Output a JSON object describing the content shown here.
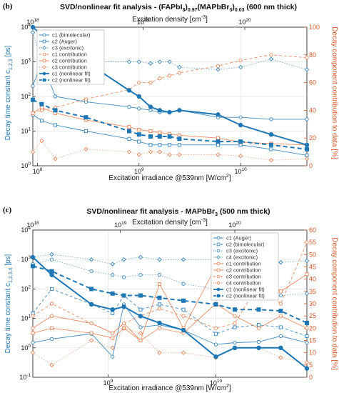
{
  "colors": {
    "blue": "#1f77b4",
    "orange": "#e8794a",
    "gray": "#999999"
  },
  "panels": [
    {
      "panel_label": "(b)",
      "title_main": "SVD/nonlinear fit analysis - (FAPbI",
      "title_sub1": "3",
      "title_mid1": ")",
      "title_sub2": "0.97",
      "title_mid2": "(MAPbBr",
      "title_sub3": "3",
      "title_mid3": ")",
      "title_sub4": "0.03",
      "title_end": " (600 nm thick)",
      "top_label": "Excitation density [cm",
      "top_label_sup": "-3",
      "top_label_end": "]",
      "xlabel": "Excitation irradiance @539nm [W/cm",
      "xlabel_sup": "2",
      "xlabel_end": "]",
      "ylabel": "Decay time constant c",
      "ylabel_sub": "1,2,3",
      "ylabel_end": " [ps]",
      "y2label": "Decay component contribution to data [%]"
    },
    {
      "panel_label": "(c)",
      "title_main": "SVD/nonlinear fit analysis - MAPbBr",
      "title_sub1": "3",
      "title_end": " (500 nm thick)",
      "top_label": "Excitation density [cm",
      "top_label_sup": "-3",
      "top_label_end": "]",
      "xlabel": "Excitation irradiance @539nm [W/cm",
      "xlabel_sup": "2",
      "xlabel_end": "]",
      "ylabel": "Decay time constant c",
      "ylabel_sub": "1,2,3,4",
      "ylabel_end": " [ps]",
      "y2label": "Decay component contribution to data [%]"
    }
  ],
  "chart_data": [
    {
      "type": "line",
      "title": "SVD/nonlinear fit analysis - (FAPbI3)0.97(MAPbBr3)0.03 (600 nm thick)",
      "xlabel": "Excitation irradiance @539nm [W/cm2]",
      "ylabel": "Decay time constant c1,2,3 [ps]",
      "y2label": "Decay component contribution to data [%]",
      "top_xlabel": "Excitation density [cm-3]",
      "xscale": "log",
      "yscale": "log",
      "xlim": [
        90000000.0,
        45000000000.0
      ],
      "ylim": [
        1,
        10000
      ],
      "y2lim": [
        0,
        100
      ],
      "x_ticks": [
        "10^8",
        "10^9",
        "10^10"
      ],
      "y_ticks": [
        "10^0",
        "10^1",
        "10^2",
        "10^3",
        "10^4"
      ],
      "y2_ticks": [
        "0",
        "20",
        "40",
        "60",
        "80",
        "100"
      ],
      "top_ticks": [
        "10^18",
        "10^19",
        "10^20"
      ],
      "top_tick_x": [
        90000000.0,
        1100000000.0,
        11000000000.0
      ],
      "legend": "top-left",
      "series": [
        {
          "name": "c1 (bimolecular)",
          "axis": "left",
          "marker": "circle-open",
          "dash": "solid",
          "color": "blue",
          "x": [
            90000000.0,
            110000000.0,
            150000000.0,
            300000000.0,
            800000000.0,
            1000000000.0,
            1300000000.0,
            1600000000.0,
            2000000000.0,
            2500000000.0,
            6000000000.0,
            10000000000.0,
            20000000000.0,
            45000000000.0
          ],
          "y": [
            200,
            1000,
            100,
            70,
            50,
            45,
            40,
            35,
            35,
            40,
            25,
            25,
            22,
            22
          ]
        },
        {
          "name": "c2 (Auger)",
          "axis": "left",
          "marker": "square-open",
          "dash": "solid",
          "color": "blue",
          "x": [
            90000000.0,
            110000000.0,
            150000000.0,
            300000000.0,
            800000000.0,
            1000000000.0,
            1300000000.0,
            1600000000.0,
            2000000000.0,
            2500000000.0,
            6000000000.0,
            10000000000.0,
            20000000000.0,
            45000000000.0
          ],
          "y": [
            30,
            20,
            15,
            10,
            6,
            5,
            4,
            4,
            4,
            4,
            4,
            4,
            3,
            2
          ]
        },
        {
          "name": "c3 (excitonic)",
          "axis": "left",
          "marker": "diamond-open",
          "dash": "dotted",
          "color": "blue",
          "x": [
            90000000.0,
            110000000.0,
            150000000.0,
            300000000.0,
            800000000.0,
            1000000000.0,
            1300000000.0,
            1600000000.0,
            2000000000.0,
            2500000000.0,
            6000000000.0,
            10000000000.0,
            20000000000.0,
            45000000000.0
          ],
          "y": [
            7000,
            1000,
            800,
            1000,
            1000,
            1000,
            900,
            1000,
            1000,
            700,
            600,
            700,
            1200,
            600
          ]
        },
        {
          "name": "c1 contribution",
          "axis": "right",
          "marker": "circle-open",
          "dash": "dashed",
          "color": "orange",
          "x": [
            90000000.0,
            110000000.0,
            150000000.0,
            300000000.0,
            800000000.0,
            1000000000.0,
            1300000000.0,
            1600000000.0,
            2000000000.0,
            2500000000.0,
            6000000000.0,
            10000000000.0,
            20000000000.0,
            45000000000.0
          ],
          "y": [
            38,
            40,
            42,
            48,
            55,
            60,
            60,
            63,
            65,
            67,
            72,
            76,
            80,
            78
          ]
        },
        {
          "name": "c2 contribution",
          "axis": "right",
          "marker": "square-open",
          "dash": "solid",
          "color": "orange",
          "x": [
            90000000.0,
            110000000.0,
            150000000.0,
            300000000.0,
            800000000.0,
            1000000000.0,
            1300000000.0,
            1600000000.0,
            2000000000.0,
            2500000000.0,
            6000000000.0,
            10000000000.0,
            20000000000.0,
            45000000000.0
          ],
          "y": [
            38,
            42,
            38,
            33,
            28,
            26,
            25,
            24,
            23,
            22,
            20,
            17,
            16,
            15
          ]
        },
        {
          "name": "c3 contribution",
          "axis": "right",
          "marker": "diamond-open",
          "dash": "dotted",
          "color": "orange",
          "x": [
            90000000.0,
            110000000.0,
            150000000.0,
            300000000.0,
            800000000.0,
            1000000000.0,
            1300000000.0,
            1600000000.0,
            2000000000.0,
            2500000000.0,
            6000000000.0,
            10000000000.0,
            20000000000.0,
            45000000000.0
          ],
          "y": [
            10,
            18,
            5,
            12,
            10,
            8,
            10,
            10,
            8,
            8,
            8,
            7,
            4,
            5
          ]
        },
        {
          "name": "c1 (nonlinear fit)",
          "axis": "left",
          "marker": "circle-filled",
          "dash": "solid-thick",
          "color": "blue",
          "x": [
            90000000.0,
            110000000.0,
            150000000.0,
            300000000.0,
            800000000.0,
            1000000000.0,
            1300000000.0,
            1600000000.0,
            2000000000.0,
            2500000000.0,
            6000000000.0,
            10000000000.0,
            20000000000.0,
            45000000000.0
          ],
          "y": [
            10000,
            6000,
            4000,
            1000,
            150,
            100,
            50,
            40,
            35,
            40,
            30,
            15,
            8,
            4
          ]
        },
        {
          "name": "c2 (nonlinear fit)",
          "axis": "left",
          "marker": "square-filled",
          "dash": "dashed-thick",
          "color": "blue",
          "x": [
            90000000.0,
            110000000.0,
            150000000.0,
            300000000.0,
            800000000.0,
            1000000000.0,
            1300000000.0,
            1600000000.0,
            2000000000.0,
            2500000000.0,
            6000000000.0,
            10000000000.0,
            20000000000.0,
            45000000000.0
          ],
          "y": [
            80,
            60,
            40,
            25,
            10,
            8,
            7,
            7,
            7,
            6,
            5,
            5,
            4,
            3
          ]
        }
      ]
    },
    {
      "type": "line",
      "title": "SVD/nonlinear fit analysis - MAPbBr3 (500 nm thick)",
      "xlabel": "Excitation irradiance @539nm [W/cm2]",
      "ylabel": "Decay time constant c1,2,3,4 [ps]",
      "y2label": "Decay component contribution to data [%]",
      "top_xlabel": "Excitation density [cm-3]",
      "xscale": "log",
      "yscale": "log",
      "xlim": [
        200000000.0,
        70000000000.0
      ],
      "ylim": [
        0.1,
        10000
      ],
      "y2lim": [
        0,
        60
      ],
      "x_ticks": [
        "10^9",
        "10^10"
      ],
      "y_ticks": [
        "10^-1",
        "10^0",
        "10^1",
        "10^2",
        "10^3",
        "10^4"
      ],
      "y2_ticks": [
        "0",
        "5",
        "10",
        "15",
        "20",
        "25",
        "30",
        "35",
        "40",
        "45",
        "50",
        "55",
        "60"
      ],
      "top_ticks": [
        "10^18",
        "10^19",
        "10^20"
      ],
      "top_tick_x": [
        200000000.0,
        1300000000.0,
        15000000000.0
      ],
      "legend": "top-right",
      "series": [
        {
          "name": "c1 (Auger)",
          "axis": "left",
          "marker": "circle-open",
          "dash": "solid",
          "color": "blue",
          "x": [
            200000000.0,
            300000000.0,
            700000000.0,
            1100000000.0,
            1400000000.0,
            2000000000.0,
            3000000000.0,
            5000000000.0,
            10000000000.0,
            15000000000.0,
            25000000000.0,
            40000000000.0,
            70000000000.0
          ],
          "y": [
            1.5,
            2,
            3,
            0.5,
            30,
            5,
            6,
            4,
            1.3,
            1.5,
            1.6,
            2.5,
            1.5
          ]
        },
        {
          "name": "c2 (bimolecular)",
          "axis": "left",
          "marker": "square-open",
          "dash": "dashed",
          "color": "blue",
          "x": [
            200000000.0,
            300000000.0,
            700000000.0,
            1100000000.0,
            1400000000.0,
            2000000000.0,
            3000000000.0,
            5000000000.0,
            10000000000.0,
            15000000000.0,
            25000000000.0,
            40000000000.0,
            70000000000.0
          ],
          "y": [
            15,
            100,
            30,
            15,
            60,
            20,
            30,
            20,
            3,
            5,
            6,
            5,
            2.5
          ]
        },
        {
          "name": "c3 (excitonic)",
          "axis": "left",
          "marker": "circle-open",
          "dash": "dotted",
          "color": "blue",
          "x": [
            200000000.0,
            300000000.0,
            700000000.0,
            1100000000.0,
            1400000000.0,
            2000000000.0,
            3000000000.0,
            5000000000.0,
            10000000000.0,
            15000000000.0,
            25000000000.0,
            40000000000.0,
            70000000000.0
          ],
          "y": [
            700,
            1000,
            400,
            300,
            250,
            300,
            300,
            150,
            100,
            100,
            80,
            60,
            70
          ]
        },
        {
          "name": "c4 (excitonic)",
          "axis": "left",
          "marker": "diamond-open",
          "dash": "dotted",
          "color": "blue",
          "x": [
            200000000.0,
            300000000.0,
            700000000.0,
            1100000000.0,
            1400000000.0,
            2000000000.0,
            3000000000.0,
            5000000000.0,
            10000000000.0,
            15000000000.0,
            25000000000.0,
            40000000000.0,
            70000000000.0
          ],
          "y": [
            1200,
            1500,
            1000,
            700,
            1000,
            1200,
            1000,
            1000,
            1000,
            1000,
            1000,
            800,
            900
          ]
        },
        {
          "name": "c1 contribution",
          "axis": "right",
          "marker": "circle-open",
          "dash": "solid",
          "color": "orange",
          "x": [
            200000000.0,
            300000000.0,
            700000000.0,
            1100000000.0,
            1400000000.0,
            2000000000.0,
            3000000000.0,
            5000000000.0,
            10000000000.0,
            15000000000.0,
            25000000000.0,
            40000000000.0,
            70000000000.0
          ],
          "y": [
            20,
            25,
            22,
            18,
            22,
            15,
            20,
            18,
            30,
            25,
            20,
            25,
            20
          ]
        },
        {
          "name": "c2 contribution",
          "axis": "right",
          "marker": "square-open",
          "dash": "solid",
          "color": "orange",
          "x": [
            200000000.0,
            300000000.0,
            700000000.0,
            1100000000.0,
            1400000000.0,
            2000000000.0,
            3000000000.0,
            5000000000.0,
            10000000000.0,
            15000000000.0,
            25000000000.0,
            40000000000.0,
            70000000000.0
          ],
          "y": [
            18,
            20,
            18,
            16,
            20,
            15,
            38,
            20,
            45,
            45,
            40,
            35,
            42
          ]
        },
        {
          "name": "c3 contribution",
          "axis": "right",
          "marker": "circle-open",
          "dash": "dashed",
          "color": "orange",
          "x": [
            200000000.0,
            300000000.0,
            700000000.0,
            1100000000.0,
            1400000000.0,
            2000000000.0,
            3000000000.0,
            5000000000.0,
            10000000000.0,
            15000000000.0,
            25000000000.0,
            40000000000.0,
            70000000000.0
          ],
          "y": [
            25,
            30,
            22,
            18,
            22,
            25,
            28,
            25,
            20,
            22,
            38,
            30,
            55
          ]
        },
        {
          "name": "c4 contribution",
          "axis": "right",
          "marker": "diamond-open",
          "dash": "dotted",
          "color": "orange",
          "x": [
            200000000.0,
            300000000.0,
            700000000.0,
            1100000000.0,
            1400000000.0,
            2000000000.0,
            3000000000.0,
            5000000000.0,
            10000000000.0,
            15000000000.0,
            25000000000.0,
            40000000000.0,
            70000000000.0
          ],
          "y": [
            10,
            5,
            15,
            12,
            20,
            18,
            10,
            10,
            8,
            12,
            12,
            8,
            6
          ]
        },
        {
          "name": "c1 (nonlinear fit)",
          "axis": "left",
          "marker": "circle-filled",
          "dash": "solid-thick",
          "color": "blue",
          "x": [
            200000000.0,
            300000000.0,
            700000000.0,
            1100000000.0,
            1400000000.0,
            2000000000.0,
            3000000000.0,
            5000000000.0,
            10000000000.0,
            15000000000.0,
            25000000000.0,
            40000000000.0,
            70000000000.0
          ],
          "y": [
            1200,
            300,
            30,
            20,
            25,
            12,
            7,
            4,
            0.5,
            1,
            1,
            1,
            0.2
          ]
        },
        {
          "name": "c2 (nonlinear fit)",
          "axis": "left",
          "marker": "square-filled",
          "dash": "dashed-thick",
          "color": "blue",
          "x": [
            200000000.0,
            300000000.0,
            700000000.0,
            1100000000.0,
            1400000000.0,
            2000000000.0,
            3000000000.0,
            5000000000.0,
            10000000000.0,
            15000000000.0,
            25000000000.0,
            40000000000.0,
            70000000000.0
          ],
          "y": [
            600,
            400,
            100,
            70,
            60,
            60,
            50,
            40,
            30,
            20,
            20,
            18,
            7
          ]
        }
      ]
    }
  ]
}
